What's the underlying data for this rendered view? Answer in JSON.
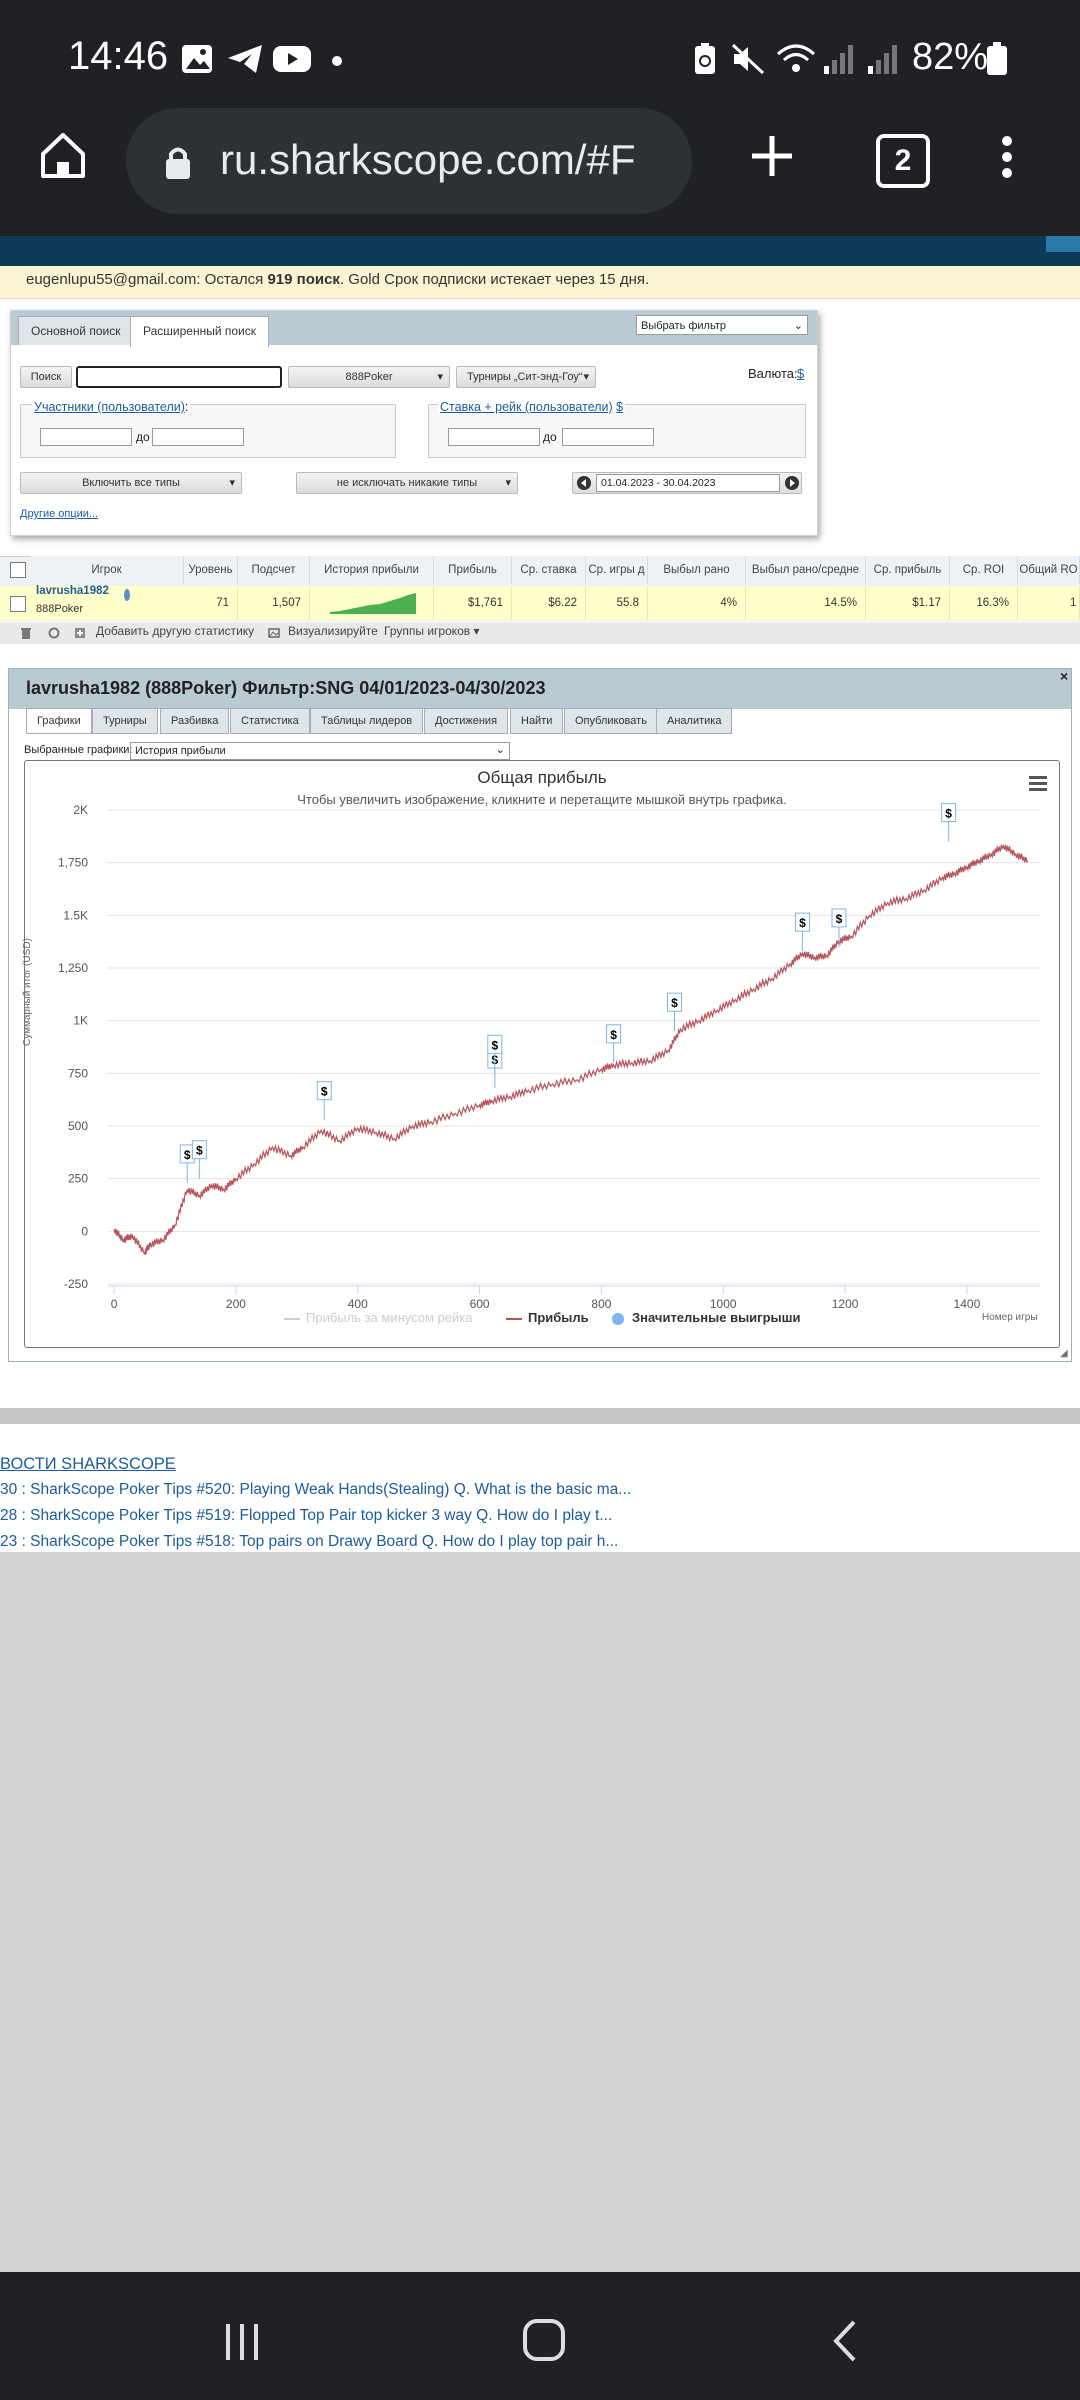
{
  "status_bar": {
    "time": "14:46",
    "battery": "82%"
  },
  "browser": {
    "url": "ru.sharkscope.com/#F",
    "tab_count": "2"
  },
  "notice": {
    "email": "eugenlupu55@gmail.com",
    "text_before": ": Остался ",
    "count": "919 поиск",
    "text_after": ". Gold Срок подписки истекает через 15 дня."
  },
  "search": {
    "tabs": [
      "Основной поиск",
      "Расширенный поиск"
    ],
    "filter_select": "Выбрать фильтр",
    "search_button": "Поиск",
    "network": "888Poker",
    "game_type": "Турниры „Сит-энд-Гоу“",
    "currency_label": "Валюта:",
    "currency_value": "$",
    "participants_label": "Участники (пользователи)",
    "participants_colon": ":",
    "stake_label": "Ставка + рейк (пользователи)",
    "stake_currency": "$",
    "to_label": "до",
    "include_types": "Включить все типы",
    "exclude_types": "не исключать никакие типы",
    "date_range": "01.04.2023 - 30.04.2023",
    "other_options": "Другие опции..."
  },
  "results": {
    "headers": [
      "Игрок",
      "Уровень",
      "Подсчет",
      "История прибыли",
      "Прибыль",
      "Ср. ставка",
      "Ср. игры д",
      "Выбыл рано",
      "Выбыл рано/средне",
      "Ср. прибыль",
      "Ср. ROI",
      "Общий RO"
    ],
    "row": {
      "player": "lavrusha1982",
      "network": "888Poker",
      "level": "71",
      "count": "1,507",
      "profit": "$1,761",
      "avg_stake": "$6.22",
      "avg_games": "55.8",
      "early_out": "4%",
      "early_mid": "14.5%",
      "avg_profit": "$1.17",
      "avg_roi": "16.3%",
      "total_roi": "1"
    },
    "footer_add": "Добавить другую статистику",
    "footer_visualize": "Визуализируйте",
    "footer_groups": "Группы игроков"
  },
  "chart_panel": {
    "title": "lavrusha1982 (888Poker) Фильтр:SNG 04/01/2023-04/30/2023",
    "tabs": [
      "Графики",
      "Турниры",
      "Разбивка",
      "Статистика",
      "Таблицы лидеров",
      "Достижения",
      "Найти",
      "Опубликовать",
      "Аналитика"
    ],
    "graphs_label": "Выбранные графики:",
    "graphs_value": "История прибыли"
  },
  "chart_data": {
    "type": "line",
    "title": "Общая прибыль",
    "subtitle": "Чтобы увеличить изображение, кликните и перетащите мышкой внутрь графика.",
    "ylabel": "Суммарный итог (USD)",
    "xlabel": "Номер игры",
    "ylim": [
      -250,
      2000
    ],
    "xlim": [
      -10,
      1520
    ],
    "yticks": [
      "-250",
      "0",
      "250",
      "500",
      "750",
      "1K",
      "1,250",
      "1.5K",
      "1,750",
      "2K"
    ],
    "ytick_values": [
      -250,
      0,
      250,
      500,
      750,
      1000,
      1250,
      1500,
      1750,
      2000
    ],
    "xticks": [
      0,
      200,
      400,
      600,
      800,
      1000,
      1200,
      1400
    ],
    "grid": true,
    "legend": [
      "Прибыль за минусом рейка",
      "Прибыль",
      "Значительные выигрыши"
    ],
    "series": [
      {
        "name": "Прибыль",
        "color": "#b5545c",
        "x": [
          0,
          15,
          30,
          50,
          60,
          80,
          100,
          120,
          140,
          160,
          180,
          200,
          230,
          260,
          290,
          310,
          340,
          370,
          400,
          430,
          460,
          490,
          520,
          560,
          600,
          620,
          650,
          680,
          720,
          760,
          800,
          820,
          850,
          880,
          910,
          930,
          960,
          990,
          1020,
          1050,
          1080,
          1110,
          1130,
          1150,
          1170,
          1190,
          1210,
          1240,
          1270,
          1300,
          1330,
          1360,
          1380,
          1400,
          1420,
          1440,
          1460,
          1480,
          1500
        ],
        "y": [
          10,
          -40,
          -20,
          -100,
          -60,
          -40,
          30,
          200,
          170,
          220,
          200,
          250,
          320,
          400,
          360,
          400,
          480,
          430,
          490,
          470,
          440,
          500,
          520,
          560,
          600,
          620,
          640,
          670,
          700,
          720,
          770,
          790,
          800,
          810,
          860,
          960,
          1000,
          1050,
          1100,
          1150,
          1200,
          1270,
          1320,
          1300,
          1310,
          1380,
          1400,
          1500,
          1560,
          1580,
          1620,
          1680,
          1700,
          1730,
          1760,
          1790,
          1830,
          1790,
          1760
        ]
      },
      {
        "name": "Значительные выигрыши",
        "color": "#7cb5ec",
        "points_x": [
          120,
          140,
          345,
          625,
          625,
          820,
          920,
          1130,
          1190,
          1370
        ],
        "points_y": [
          230,
          250,
          530,
          680,
          750,
          800,
          950,
          1330,
          1350,
          1850
        ]
      }
    ]
  },
  "news": {
    "title": "ВОСТИ SHARKSCOPE",
    "items": [
      "30 : SharkScope Poker Tips #520: Playing Weak Hands(Stealing) Q. What is the basic ma...",
      "28 : SharkScope Poker Tips #519: Flopped Top Pair top kicker 3 way Q. How do I play t...",
      "23 : SharkScope Poker Tips #518: Top pairs on Drawy Board Q. How do I play top pair h..."
    ]
  }
}
